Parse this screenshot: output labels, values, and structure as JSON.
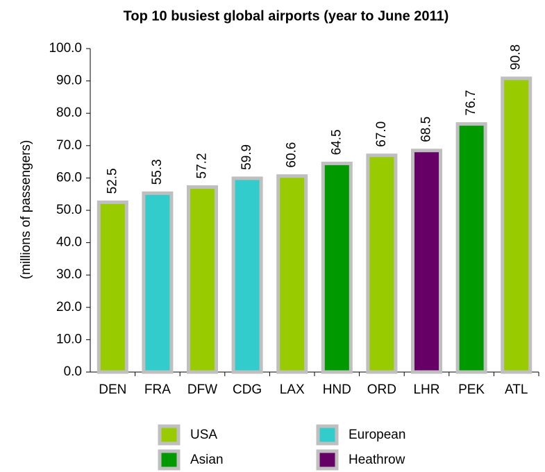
{
  "chart_data": {
    "type": "bar",
    "title": "Top 10 busiest global airports (year to June 2011)",
    "y_label": "(millions of passengers)",
    "categories": [
      "DEN",
      "FRA",
      "DFW",
      "CDG",
      "LAX",
      "HND",
      "ORD",
      "LHR",
      "PEK",
      "ATL"
    ],
    "series": [
      {
        "name": "USA",
        "color": "#99cc00",
        "values": [
          52.5,
          null,
          57.2,
          null,
          60.6,
          null,
          67.0,
          null,
          null,
          90.8
        ],
        "value_labels": [
          "52.5",
          null,
          "57.2",
          null,
          "60.6",
          null,
          "67.0",
          null,
          null,
          "90.8"
        ]
      },
      {
        "name": "European",
        "color": "#33cccc",
        "values": [
          null,
          55.3,
          null,
          59.9,
          null,
          null,
          null,
          null,
          null,
          null
        ],
        "value_labels": [
          null,
          "55.3",
          null,
          "59.9",
          null,
          null,
          null,
          null,
          null,
          null
        ]
      },
      {
        "name": "Asian",
        "color": "#009900",
        "values": [
          null,
          null,
          null,
          null,
          null,
          64.5,
          null,
          null,
          76.7,
          null
        ],
        "value_labels": [
          null,
          null,
          null,
          null,
          null,
          "64.5",
          null,
          null,
          "76.7",
          null
        ]
      },
      {
        "name": "Heathrow",
        "color": "#660066",
        "values": [
          null,
          null,
          null,
          null,
          null,
          null,
          null,
          68.5,
          null,
          null
        ],
        "value_labels": [
          null,
          null,
          null,
          null,
          null,
          null,
          null,
          "68.5",
          null,
          null
        ]
      }
    ],
    "ylim": [
      0,
      100
    ],
    "yticks": [
      {
        "value": 0,
        "label": "0.0"
      },
      {
        "value": 10,
        "label": "10.0"
      },
      {
        "value": 20,
        "label": "20.0"
      },
      {
        "value": 30,
        "label": "30.0"
      },
      {
        "value": 40,
        "label": "40.0"
      },
      {
        "value": 50,
        "label": "50.0"
      },
      {
        "value": 60,
        "label": "60.0"
      },
      {
        "value": 70,
        "label": "70.0"
      },
      {
        "value": 80,
        "label": "80.0"
      },
      {
        "value": 90,
        "label": "90.0"
      },
      {
        "value": 100,
        "label": "100.0"
      }
    ],
    "grid": false
  }
}
